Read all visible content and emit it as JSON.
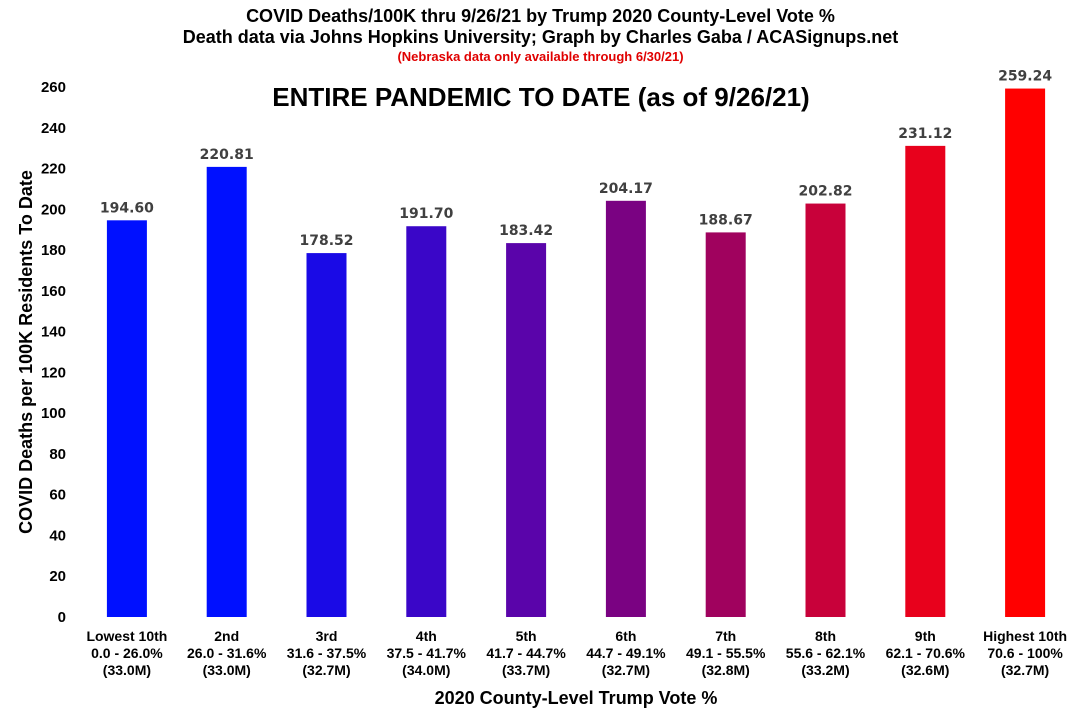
{
  "header": {
    "title": "COVID Deaths/100K thru 9/26/21 by Trump 2020 County-Level Vote %",
    "subtitle": "Death data via Johns Hopkins University; Graph by Charles Gaba / ACASignups.net",
    "note": "(Nebraska data only available through 6/30/21)",
    "note_color": "#e00000"
  },
  "chart_data": {
    "type": "bar",
    "title": "COVID Deaths/100K thru 9/26/21 by Trump 2020 County-Level Vote %",
    "inner_title": "ENTIRE PANDEMIC TO DATE (as of 9/26/21)",
    "xlabel": "2020 County-Level Trump Vote %",
    "ylabel": "COVID Deaths per 100K Residents To Date",
    "ylim": [
      0,
      260
    ],
    "yticks": [
      0,
      20,
      40,
      60,
      80,
      100,
      120,
      140,
      160,
      180,
      200,
      220,
      240,
      260
    ],
    "grid": false,
    "legend": "none",
    "categories": [
      [
        "Lowest 10th",
        "0.0 - 26.0%",
        "(33.0M)"
      ],
      [
        "2nd",
        "26.0 - 31.6%",
        "(33.0M)"
      ],
      [
        "3rd",
        "31.6 - 37.5%",
        "(32.7M)"
      ],
      [
        "4th",
        "37.5 - 41.7%",
        "(34.0M)"
      ],
      [
        "5th",
        "41.7 - 44.7%",
        "(33.7M)"
      ],
      [
        "6th",
        "44.7 - 49.1%",
        "(32.7M)"
      ],
      [
        "7th",
        "49.1 - 55.5%",
        "(32.8M)"
      ],
      [
        "8th",
        "55.6 - 62.1%",
        "(33.2M)"
      ],
      [
        "9th",
        "62.1 - 70.6%",
        "(32.6M)"
      ],
      [
        "Highest 10th",
        "70.6 - 100%",
        "(32.7M)"
      ]
    ],
    "values": [
      194.6,
      220.81,
      178.52,
      191.7,
      183.42,
      204.17,
      188.67,
      202.82,
      231.12,
      259.24
    ],
    "value_labels": [
      "194.60",
      "220.81",
      "178.52",
      "191.70",
      "183.42",
      "204.17",
      "188.67",
      "202.82",
      "231.12",
      "259.24"
    ],
    "colors": [
      "#0010ff",
      "#0010ff",
      "#1a0ae6",
      "#3a06c8",
      "#5a04aa",
      "#7a0282",
      "#a0025e",
      "#c8013a",
      "#e8011c",
      "#ff0000"
    ]
  }
}
